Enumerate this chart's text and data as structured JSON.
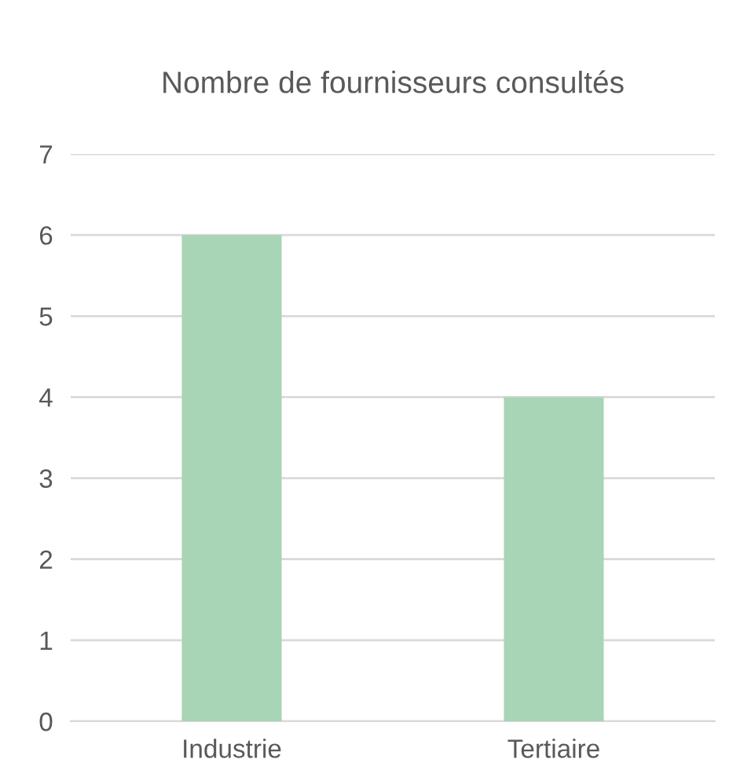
{
  "chart_data": {
    "type": "bar",
    "title": "Nombre de fournisseurs consultés",
    "categories": [
      "Industrie",
      "Tertiaire"
    ],
    "series": [
      {
        "color": "#a8d5b5",
        "values": [
          6,
          4
        ]
      }
    ],
    "ylim": [
      0,
      7
    ],
    "yticks": [
      0,
      1,
      2,
      3,
      4,
      5,
      6,
      7
    ],
    "grid": "y",
    "legend": false
  }
}
